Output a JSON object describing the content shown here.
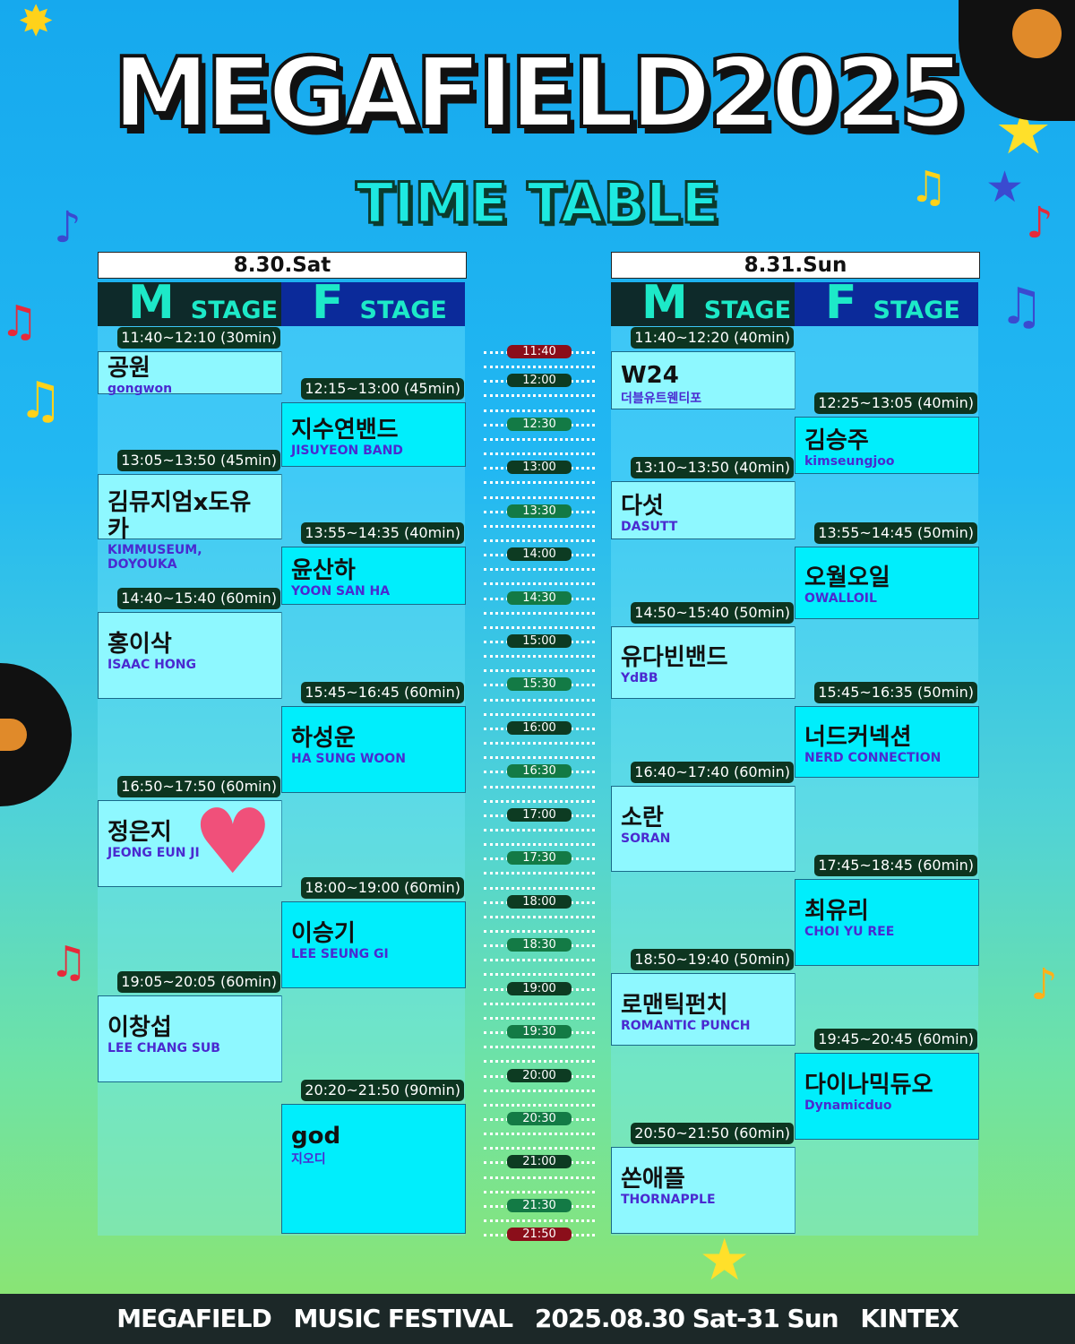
{
  "title": "MEGAFIELD2025",
  "subtitle": "TIME TABLE",
  "days": [
    {
      "label": "8.30.Sat",
      "stages": [
        {
          "letter": "M",
          "word": "STAGE",
          "acts": [
            {
              "time": "11:40~12:10 (30min)",
              "ko": "공원",
              "en": "gongwon"
            },
            {
              "time": "13:05~13:50 (45min)",
              "ko": "김뮤지엄x도유카",
              "en": "KIMMUSEUM, DOYOUKA"
            },
            {
              "time": "14:40~15:40 (60min)",
              "ko": "홍이삭",
              "en": "ISAAC HONG"
            },
            {
              "time": "16:50~17:50 (60min)",
              "ko": "정은지",
              "en": "JEONG EUN JI"
            },
            {
              "time": "19:05~20:05 (60min)",
              "ko": "이창섭",
              "en": "LEE CHANG SUB"
            }
          ]
        },
        {
          "letter": "F",
          "word": "STAGE",
          "acts": [
            {
              "time": "12:15~13:00 (45min)",
              "ko": "지수연밴드",
              "en": "JISUYEON BAND"
            },
            {
              "time": "13:55~14:35 (40min)",
              "ko": "윤산하",
              "en": "YOON SAN HA"
            },
            {
              "time": "15:45~16:45 (60min)",
              "ko": "하성운",
              "en": "HA SUNG WOON"
            },
            {
              "time": "18:00~19:00 (60min)",
              "ko": "이승기",
              "en": "LEE SEUNG GI"
            },
            {
              "time": "20:20~21:50 (90min)",
              "ko": "god",
              "en": "지오디"
            }
          ]
        }
      ]
    },
    {
      "label": "8.31.Sun",
      "stages": [
        {
          "letter": "M",
          "word": "STAGE",
          "acts": [
            {
              "time": "11:40~12:20 (40min)",
              "ko": "W24",
              "en": "더블유트웬티포"
            },
            {
              "time": "13:10~13:50 (40min)",
              "ko": "다섯",
              "en": "DASUTT"
            },
            {
              "time": "14:50~15:40 (50min)",
              "ko": "유다빈밴드",
              "en": "YdBB"
            },
            {
              "time": "16:40~17:40 (60min)",
              "ko": "소란",
              "en": "SORAN"
            },
            {
              "time": "18:50~19:40 (50min)",
              "ko": "로맨틱펀치",
              "en": "ROMANTIC PUNCH"
            },
            {
              "time": "20:50~21:50 (60min)",
              "ko": "쏜애플",
              "en": "THORNAPPLE"
            }
          ]
        },
        {
          "letter": "F",
          "word": "STAGE",
          "acts": [
            {
              "time": "12:25~13:05 (40min)",
              "ko": "김승주",
              "en": "kimseungjoo"
            },
            {
              "time": "13:55~14:45 (50min)",
              "ko": "오월오일",
              "en": "OWALLOIL"
            },
            {
              "time": "15:45~16:35 (50min)",
              "ko": "너드커넥션",
              "en": "NERD CONNECTION"
            },
            {
              "time": "17:45~18:45 (60min)",
              "ko": "최유리",
              "en": "CHOI YU REE"
            },
            {
              "time": "19:45~20:45 (60min)",
              "ko": "다이나믹듀오",
              "en": "Dynamicduo"
            }
          ]
        }
      ]
    }
  ],
  "timeline": [
    "11:40",
    "12:00",
    "12:30",
    "13:00",
    "13:30",
    "14:00",
    "14:30",
    "15:00",
    "15:30",
    "16:00",
    "16:30",
    "17:00",
    "17:30",
    "18:00",
    "18:30",
    "19:00",
    "19:30",
    "20:00",
    "20:30",
    "21:00",
    "21:30",
    "21:50"
  ],
  "footer": {
    "brand": "MEGAFIELD",
    "event": "MUSIC FESTIVAL",
    "dates": "2025.08.30 Sat-31 Sun",
    "venue": "KINTEX"
  },
  "colors": {
    "m_block": "#8ef8ff",
    "f_block": "#00eefc",
    "pill": "#0d3b22",
    "pill_edge": "#8b0e1a"
  }
}
